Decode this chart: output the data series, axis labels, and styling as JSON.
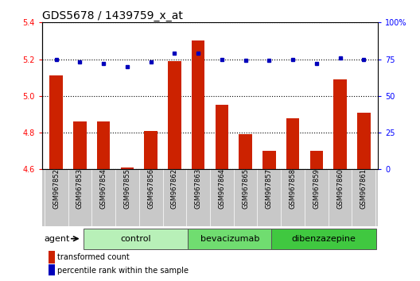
{
  "title": "GDS5678 / 1439759_x_at",
  "samples": [
    "GSM967852",
    "GSM967853",
    "GSM967854",
    "GSM967855",
    "GSM967856",
    "GSM967862",
    "GSM967863",
    "GSM967864",
    "GSM967865",
    "GSM967857",
    "GSM967858",
    "GSM967859",
    "GSM967860",
    "GSM967861"
  ],
  "bar_values": [
    5.11,
    4.86,
    4.86,
    4.61,
    4.81,
    5.19,
    5.3,
    4.95,
    4.79,
    4.7,
    4.88,
    4.7,
    5.09,
    4.91
  ],
  "dot_values": [
    75,
    73,
    72,
    70,
    73,
    79,
    79,
    75,
    74,
    74,
    75,
    72,
    76,
    75
  ],
  "ylim_left": [
    4.6,
    5.4
  ],
  "ylim_right": [
    0,
    100
  ],
  "yticks_left": [
    4.6,
    4.8,
    5.0,
    5.2,
    5.4
  ],
  "yticks_right": [
    0,
    25,
    50,
    75,
    100
  ],
  "ytick_labels_right": [
    "0",
    "25",
    "50",
    "75",
    "100%"
  ],
  "groups": [
    {
      "label": "control",
      "start": 0,
      "end": 5,
      "color": "#b8f0b8"
    },
    {
      "label": "bevacizumab",
      "start": 5,
      "end": 9,
      "color": "#70dd70"
    },
    {
      "label": "dibenzazepine",
      "start": 9,
      "end": 14,
      "color": "#40c840"
    }
  ],
  "bar_color": "#cc2200",
  "dot_color": "#0000bb",
  "bar_base": 4.6,
  "agent_label": "agent",
  "legend_bar_label": "transformed count",
  "legend_dot_label": "percentile rank within the sample",
  "title_fontsize": 10,
  "tick_fontsize": 7,
  "label_fontsize": 6,
  "group_fontsize": 8,
  "gray_bg": "#c8c8c8",
  "plot_bg_color": "#ffffff"
}
